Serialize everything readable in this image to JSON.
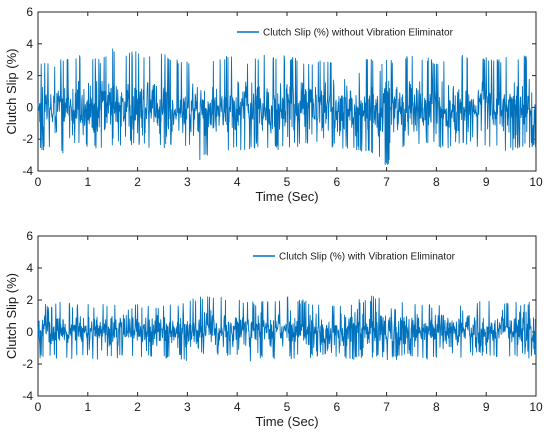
{
  "colors": {
    "series": "#0072BD",
    "axis": "#262626",
    "background": "#ffffff"
  },
  "chart_data": [
    {
      "type": "line",
      "xlabel": "Time (Sec)",
      "ylabel": "Clutch Slip (%)",
      "xlim": [
        0,
        10
      ],
      "ylim": [
        -4,
        6
      ],
      "xticks": [
        "0",
        "1",
        "2",
        "3",
        "4",
        "5",
        "6",
        "7",
        "8",
        "9",
        "10"
      ],
      "yticks": [
        "-4",
        "-2",
        "0",
        "2",
        "4",
        "6"
      ],
      "grid": false,
      "legend_position": "top-right",
      "series": [
        {
          "name": "Clutch Slip (%) without Vibration Eliminator",
          "x": [
            0,
            0.25,
            0.5,
            0.75,
            1,
            1.25,
            1.5,
            1.75,
            2,
            2.25,
            2.5,
            2.75,
            3,
            3.25,
            3.5,
            3.75,
            4,
            4.25,
            4.5,
            4.75,
            5,
            5.25,
            5.5,
            5.75,
            6,
            6.25,
            6.5,
            6.75,
            7,
            7.25,
            7.5,
            7.75,
            8,
            8.25,
            8.5,
            8.75,
            9,
            9.25,
            9.5,
            9.75,
            10
          ],
          "envelope_max": [
            3.0,
            2.7,
            3.1,
            3.3,
            3.4,
            3.0,
            3.7,
            3.4,
            3.6,
            3.2,
            3.4,
            3.0,
            3.0,
            2.8,
            3.1,
            3.3,
            3.3,
            2.9,
            3.4,
            3.2,
            3.3,
            3.0,
            2.9,
            3.1,
            3.1,
            2.8,
            3.4,
            3.0,
            3.1,
            3.0,
            3.4,
            3.2,
            3.0,
            2.8,
            3.4,
            3.0,
            3.2,
            3.0,
            3.4,
            3.3,
            2.9
          ],
          "envelope_min": [
            -2.8,
            -2.6,
            -2.9,
            -2.5,
            -2.6,
            -2.8,
            -2.7,
            -2.5,
            -2.3,
            -2.8,
            -2.6,
            -2.4,
            -2.4,
            -3.6,
            -2.6,
            -2.7,
            -2.8,
            -2.6,
            -2.5,
            -2.7,
            -2.6,
            -2.5,
            -2.4,
            -2.6,
            -2.5,
            -2.7,
            -2.8,
            -3.1,
            -3.8,
            -2.6,
            -2.5,
            -2.3,
            -2.5,
            -2.6,
            -2.4,
            -2.4,
            -2.6,
            -2.7,
            -2.8,
            -2.5,
            -2.6
          ],
          "mean": 0
        }
      ]
    },
    {
      "type": "line",
      "xlabel": "Time (Sec)",
      "ylabel": "Clutch Slip (%)",
      "xlim": [
        0,
        10
      ],
      "ylim": [
        -4,
        6
      ],
      "xticks": [
        "0",
        "1",
        "2",
        "3",
        "4",
        "5",
        "6",
        "7",
        "8",
        "9",
        "10"
      ],
      "yticks": [
        "-4",
        "-2",
        "0",
        "2",
        "4",
        "6"
      ],
      "grid": false,
      "legend_position": "top-right",
      "series": [
        {
          "name": "Clutch Slip (%) with Vibration Eliminator",
          "x": [
            0,
            0.25,
            0.5,
            0.75,
            1,
            1.25,
            1.5,
            1.75,
            2,
            2.25,
            2.5,
            2.75,
            3,
            3.25,
            3.5,
            3.75,
            4,
            4.25,
            4.5,
            4.75,
            5,
            5.25,
            5.5,
            5.75,
            6,
            6.25,
            6.5,
            6.75,
            7,
            7.25,
            7.5,
            7.75,
            8,
            8.25,
            8.5,
            8.75,
            9,
            9.25,
            9.5,
            9.75,
            10
          ],
          "envelope_max": [
            1.9,
            1.8,
            2.0,
            1.8,
            1.9,
            1.7,
            2.0,
            1.8,
            1.9,
            1.7,
            1.8,
            1.9,
            1.9,
            2.3,
            2.4,
            2.1,
            2.2,
            1.9,
            2.0,
            2.2,
            2.3,
            2.1,
            2.0,
            1.9,
            1.8,
            1.9,
            2.1,
            2.3,
            2.0,
            1.9,
            2.1,
            1.8,
            1.8,
            2.0,
            1.9,
            2.0,
            2.2,
            1.9,
            2.0,
            1.8,
            2.0
          ],
          "envelope_min": [
            -1.7,
            -1.6,
            -1.8,
            -1.7,
            -1.6,
            -1.8,
            -1.7,
            -1.5,
            -1.6,
            -1.8,
            -1.7,
            -1.6,
            -1.8,
            -1.7,
            -1.5,
            -1.6,
            -1.7,
            -1.9,
            -1.6,
            -1.7,
            -1.8,
            -1.6,
            -1.7,
            -1.5,
            -1.6,
            -1.8,
            -1.7,
            -1.6,
            -1.9,
            -1.7,
            -1.6,
            -1.7,
            -1.8,
            -1.6,
            -1.7,
            -1.5,
            -1.6,
            -1.7,
            -1.8,
            -1.6,
            -1.7
          ],
          "mean": 0.1
        }
      ]
    }
  ]
}
